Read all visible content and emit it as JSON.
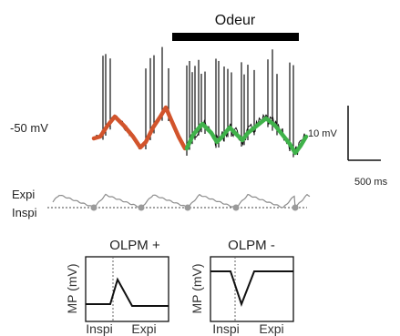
{
  "figure": {
    "stimulus_label": "Odeur",
    "membrane_potential_label": "-50 mV",
    "scale_voltage_label": "10 mV",
    "scale_time_label": "500 ms",
    "respiration": {
      "top_label": "Expi",
      "bottom_label": "Inspi"
    },
    "colors": {
      "before_odor": "#d2542c",
      "during_odor": "#3fb24a",
      "trace": "#111111",
      "respiration": "#8c8c8c",
      "phase_marker": "#9a9a9a"
    }
  },
  "insets": [
    {
      "title": "OLPM +",
      "title_color": "#d2542c",
      "ylabel": "MP (mV)",
      "xlabels": [
        "Inspi",
        "Expi"
      ],
      "shape": "positive-peak"
    },
    {
      "title": "OLPM -",
      "title_color": "#3fb24a",
      "ylabel": "MP (mV)",
      "xlabels": [
        "Inspi",
        "Expi"
      ],
      "shape": "negative-dip"
    }
  ]
}
